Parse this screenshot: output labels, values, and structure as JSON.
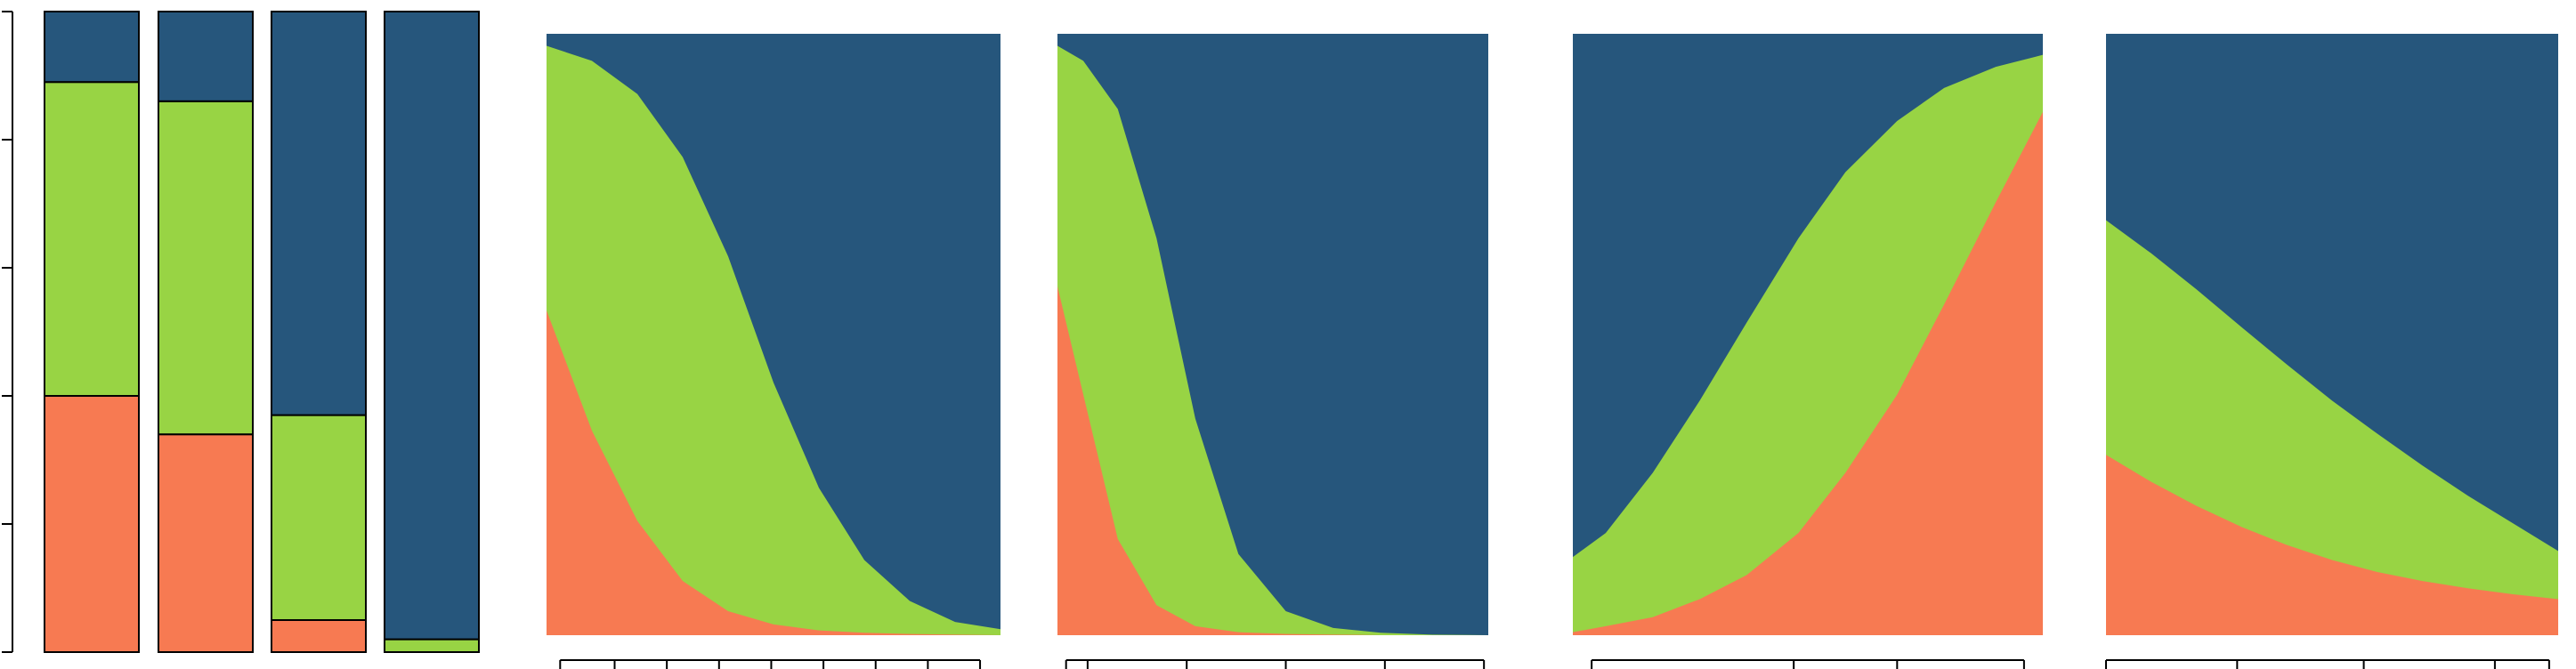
{
  "colors": {
    "bottom": "#F77A52",
    "middle": "#98D444",
    "top": "#26567C",
    "axis": "#000000",
    "background": "#FFFFFF"
  },
  "chart_data": [
    {
      "type": "bar",
      "stacked": true,
      "normalized": true,
      "series_order": [
        "bottom",
        "middle",
        "top"
      ],
      "ylim": [
        0,
        1
      ],
      "y_ticks": [
        0,
        0.2,
        0.4,
        0.6,
        0.8,
        1
      ],
      "tick_labels_visible": false,
      "bars": [
        {
          "bottom": 0.4,
          "middle": 0.49,
          "top": 0.11
        },
        {
          "bottom": 0.34,
          "middle": 0.52,
          "top": 0.14
        },
        {
          "bottom": 0.05,
          "middle": 0.32,
          "top": 0.63
        },
        {
          "bottom": 0.0,
          "middle": 0.02,
          "top": 0.98
        }
      ]
    },
    {
      "type": "area",
      "stacked": true,
      "normalized": true,
      "ylim": [
        0,
        1
      ],
      "x": [
        0,
        0.1,
        0.2,
        0.3,
        0.4,
        0.5,
        0.6,
        0.7,
        0.8,
        0.9,
        1.0
      ],
      "bottom": [
        0.54,
        0.34,
        0.19,
        0.09,
        0.04,
        0.018,
        0.008,
        0.004,
        0.002,
        0.001,
        0.0
      ],
      "bottom_plus_middle": [
        0.98,
        0.955,
        0.9,
        0.795,
        0.63,
        0.42,
        0.245,
        0.125,
        0.057,
        0.022,
        0.01
      ],
      "x_ticks": [
        0.03,
        0.15,
        0.265,
        0.38,
        0.495,
        0.61,
        0.725,
        0.84,
        0.955
      ],
      "tick_labels_visible": false
    },
    {
      "type": "area",
      "stacked": true,
      "normalized": true,
      "ylim": [
        0,
        1
      ],
      "x": [
        0,
        0.06,
        0.14,
        0.23,
        0.32,
        0.42,
        0.53,
        0.64,
        0.75,
        0.87,
        1.0
      ],
      "bottom": [
        0.58,
        0.4,
        0.16,
        0.05,
        0.015,
        0.005,
        0.002,
        0.001,
        0.0,
        0.0,
        0.0
      ],
      "bottom_plus_middle": [
        0.98,
        0.955,
        0.875,
        0.66,
        0.36,
        0.135,
        0.04,
        0.012,
        0.004,
        0.001,
        0.0
      ],
      "x_ticks": [
        0.02,
        0.07,
        0.3,
        0.53,
        0.76,
        0.99
      ],
      "tick_labels_visible": false
    },
    {
      "type": "area",
      "stacked": true,
      "normalized": true,
      "ylim": [
        0,
        1
      ],
      "x": [
        0,
        0.07,
        0.17,
        0.27,
        0.37,
        0.48,
        0.58,
        0.69,
        0.79,
        0.9,
        1.0
      ],
      "bottom": [
        0.005,
        0.015,
        0.03,
        0.06,
        0.1,
        0.17,
        0.27,
        0.4,
        0.55,
        0.72,
        0.87
      ],
      "bottom_plus_middle": [
        0.13,
        0.17,
        0.27,
        0.39,
        0.52,
        0.66,
        0.77,
        0.855,
        0.91,
        0.945,
        0.965
      ],
      "x_ticks": [
        0.04,
        0.47,
        0.69,
        0.96
      ],
      "tick_labels_visible": false
    },
    {
      "type": "area",
      "stacked": true,
      "normalized": true,
      "ylim": [
        0,
        1
      ],
      "x": [
        0,
        0.1,
        0.2,
        0.3,
        0.4,
        0.5,
        0.6,
        0.7,
        0.8,
        0.9,
        1.0
      ],
      "bottom": [
        0.3,
        0.255,
        0.215,
        0.18,
        0.15,
        0.125,
        0.105,
        0.09,
        0.078,
        0.068,
        0.06
      ],
      "bottom_plus_middle": [
        0.69,
        0.635,
        0.575,
        0.512,
        0.45,
        0.39,
        0.335,
        0.282,
        0.232,
        0.186,
        0.14
      ],
      "x_ticks": [
        0.0,
        0.29,
        0.57,
        0.86,
        0.98
      ],
      "tick_labels_visible": false
    }
  ]
}
